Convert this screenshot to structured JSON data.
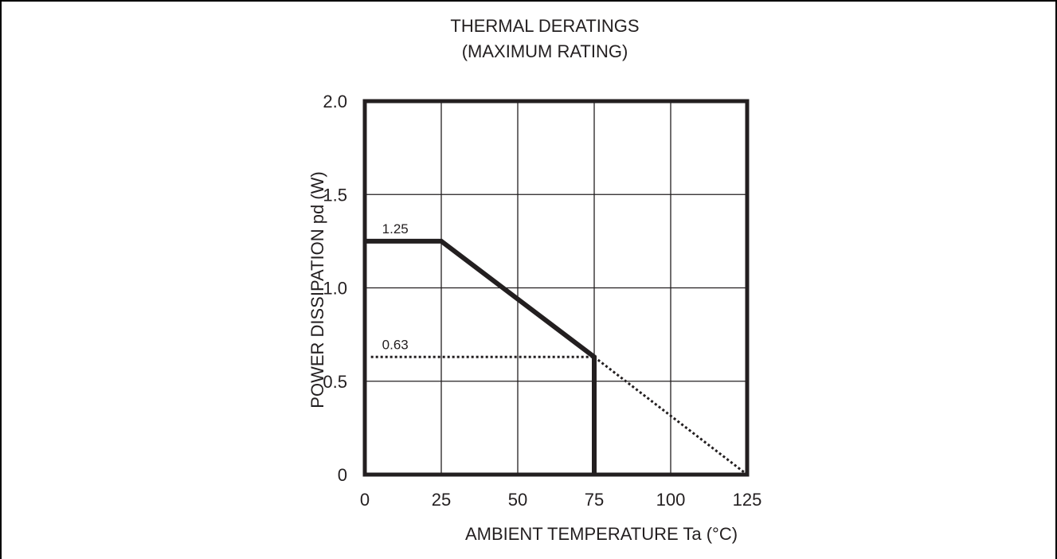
{
  "chart_data": {
    "type": "line",
    "title": "THERMAL DERATINGS",
    "subtitle": "(MAXIMUM RATING)",
    "xlabel": "AMBIENT TEMPERATURE   Ta (°C)",
    "ylabel": "POWER DISSIPATION  pd (W)",
    "xlim": [
      0,
      125
    ],
    "ylim": [
      0,
      2.0
    ],
    "x_ticks": [
      0,
      25,
      50,
      75,
      100,
      125
    ],
    "x_tick_labels": [
      "0",
      "25",
      "50",
      "75",
      "100",
      "125"
    ],
    "y_ticks": [
      0,
      0.5,
      1.0,
      1.5,
      2.0
    ],
    "y_tick_labels": [
      "0",
      "0.5",
      "1.0",
      "1.5",
      "2.0"
    ],
    "grid": true,
    "series": [
      {
        "style": "solid",
        "points": [
          [
            0,
            1.25
          ],
          [
            25,
            1.25
          ],
          [
            75,
            0.63
          ],
          [
            75,
            0
          ]
        ]
      },
      {
        "style": "dotted",
        "points": [
          [
            75,
            0.63
          ],
          [
            125,
            0
          ]
        ]
      },
      {
        "style": "dotted",
        "points": [
          [
            2,
            0.63
          ],
          [
            75,
            0.63
          ]
        ]
      }
    ],
    "annotations": [
      {
        "text": "1.25",
        "x": 2,
        "y": 1.25
      },
      {
        "text": "0.63",
        "x": 2,
        "y": 0.63
      }
    ],
    "colors": {
      "line": "#231f20",
      "grid": "#231f20",
      "text": "#231f20"
    }
  }
}
